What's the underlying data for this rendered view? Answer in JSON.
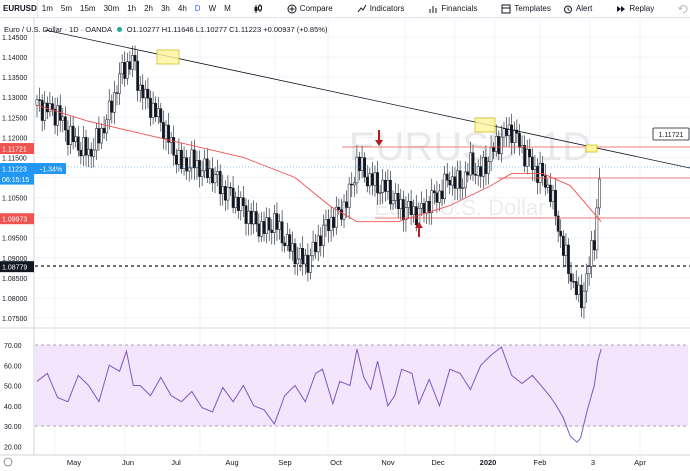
{
  "toolbar": {
    "symbol": "EURUSD",
    "timeframes": [
      "1m",
      "5m",
      "15m",
      "30m",
      "1h",
      "2h",
      "3h",
      "4h",
      "D",
      "W",
      "M"
    ],
    "active_timeframe": "D",
    "compare_label": "Compare",
    "indicators_label": "Indicators",
    "financials_label": "Financials",
    "templates_label": "Templates",
    "alert_label": "Alert",
    "replay_label": "Replay"
  },
  "legend": {
    "title": "Euro / U.S. Dollar · 1D · OANDA",
    "ohlc": "O1.10277  H1.11646  L1.10277  C1.11223  +0.00937 (+0.85%)"
  },
  "watermark": {
    "symbol": "EURUSD, 1D",
    "name": "Euro / U.S. Dollar"
  },
  "price_axis": {
    "labels": [
      "1.14500",
      "1.14000",
      "1.13500",
      "1.13000",
      "1.12500",
      "1.12000",
      "1.11500",
      "1.11000",
      "1.10500",
      "1.10000",
      "1.09500",
      "1.09000",
      "1.08500",
      "1.08000",
      "1.07500"
    ],
    "values": [
      1.145,
      1.14,
      1.135,
      1.13,
      1.125,
      1.12,
      1.115,
      1.11,
      1.105,
      1.1,
      1.095,
      1.09,
      1.085,
      1.08,
      1.075
    ],
    "tags": [
      {
        "text": "1.11721",
        "value": 1.11721,
        "color": "#ef5350"
      },
      {
        "text": "1.11223",
        "value": 1.11223,
        "color": "#2196f3"
      },
      {
        "text": "06:15:15",
        "value": 1.1096,
        "color": "#2196f3"
      },
      {
        "text": "1.09973",
        "value": 1.09973,
        "color": "#ef5350"
      },
      {
        "text": "1.08779",
        "value": 1.08779,
        "color": "#131722"
      }
    ],
    "pct_tag": "-1.34%",
    "callout": "1.11721"
  },
  "rsi_axis": {
    "labels": [
      "70.00",
      "60.00",
      "50.00",
      "40.00",
      "30.00",
      "20.00"
    ],
    "values": [
      70,
      60,
      50,
      40,
      30,
      20
    ]
  },
  "time_axis": {
    "labels": [
      "May",
      "Jun",
      "Jul",
      "Aug",
      "Sep",
      "Oct",
      "Nov",
      "Dec",
      "2020",
      "Feb",
      "3",
      "Apr"
    ]
  },
  "colors": {
    "up": "#26a69a",
    "down": "#131722",
    "ma": "#ef5350",
    "trendline": "#131722",
    "level": "#ef5350",
    "rsi": "#7e57c2",
    "rsi_band": "#f3e5fb",
    "highlight": "#fff59d"
  },
  "chart_data": {
    "type": "candlestick",
    "instrument": "EURUSD",
    "timeframe": "1D",
    "price_range": [
      1.072,
      1.148
    ],
    "horizontal_levels": [
      1.11721,
      1.11223,
      1.09973,
      1.08779
    ],
    "close_path": [
      [
        0,
        1.128
      ],
      [
        6,
        1.127
      ],
      [
        12,
        1.126
      ],
      [
        18,
        1.121
      ],
      [
        24,
        1.118
      ],
      [
        30,
        1.116
      ],
      [
        36,
        1.12
      ],
      [
        42,
        1.126
      ],
      [
        48,
        1.135
      ],
      [
        52,
        1.138
      ],
      [
        56,
        1.139
      ],
      [
        60,
        1.132
      ],
      [
        66,
        1.128
      ],
      [
        72,
        1.124
      ],
      [
        78,
        1.118
      ],
      [
        84,
        1.113
      ],
      [
        90,
        1.114
      ],
      [
        96,
        1.112
      ],
      [
        102,
        1.111
      ],
      [
        108,
        1.107
      ],
      [
        114,
        1.105
      ],
      [
        120,
        1.102
      ],
      [
        126,
        1.099
      ],
      [
        132,
        1.097
      ],
      [
        138,
        1.099
      ],
      [
        142,
        1.096
      ],
      [
        146,
        1.093
      ],
      [
        152,
        1.09
      ],
      [
        158,
        1.089
      ],
      [
        164,
        1.095
      ],
      [
        170,
        1.099
      ],
      [
        176,
        1.101
      ],
      [
        182,
        1.106
      ],
      [
        186,
        1.114
      ],
      [
        192,
        1.11
      ],
      [
        198,
        1.108
      ],
      [
        204,
        1.107
      ],
      [
        210,
        1.103
      ],
      [
        216,
        1.102
      ],
      [
        222,
        1.101
      ],
      [
        228,
        1.104
      ],
      [
        234,
        1.106
      ],
      [
        240,
        1.11
      ],
      [
        246,
        1.108
      ],
      [
        252,
        1.113
      ],
      [
        258,
        1.111
      ],
      [
        264,
        1.116
      ],
      [
        270,
        1.12
      ],
      [
        276,
        1.122
      ],
      [
        282,
        1.117
      ],
      [
        288,
        1.113
      ],
      [
        294,
        1.11
      ],
      [
        298,
        1.107
      ],
      [
        302,
        1.1
      ],
      [
        306,
        1.092
      ],
      [
        310,
        1.086
      ],
      [
        314,
        1.081
      ],
      [
        316,
        1.079
      ],
      [
        320,
        1.086
      ],
      [
        324,
        1.095
      ],
      [
        326,
        1.105
      ],
      [
        328,
        1.112
      ]
    ],
    "ma_path": [
      [
        0,
        1.128
      ],
      [
        30,
        1.124
      ],
      [
        60,
        1.121
      ],
      [
        90,
        1.118
      ],
      [
        120,
        1.115
      ],
      [
        150,
        1.11
      ],
      [
        170,
        1.103
      ],
      [
        186,
        1.099
      ],
      [
        210,
        1.099
      ],
      [
        240,
        1.103
      ],
      [
        264,
        1.108
      ],
      [
        276,
        1.111
      ],
      [
        294,
        1.111
      ],
      [
        310,
        1.108
      ],
      [
        320,
        1.103
      ],
      [
        328,
        1.099
      ]
    ],
    "rsi_path": [
      [
        0,
        52
      ],
      [
        6,
        56
      ],
      [
        12,
        44
      ],
      [
        18,
        42
      ],
      [
        24,
        55
      ],
      [
        30,
        50
      ],
      [
        36,
        42
      ],
      [
        42,
        60
      ],
      [
        48,
        57
      ],
      [
        52,
        67
      ],
      [
        56,
        50
      ],
      [
        60,
        50
      ],
      [
        66,
        45
      ],
      [
        72,
        54
      ],
      [
        78,
        45
      ],
      [
        84,
        42
      ],
      [
        90,
        47
      ],
      [
        96,
        39
      ],
      [
        102,
        37
      ],
      [
        108,
        49
      ],
      [
        114,
        42
      ],
      [
        120,
        50
      ],
      [
        126,
        40
      ],
      [
        132,
        38
      ],
      [
        138,
        31
      ],
      [
        144,
        45
      ],
      [
        150,
        50
      ],
      [
        156,
        42
      ],
      [
        162,
        56
      ],
      [
        166,
        58
      ],
      [
        172,
        41
      ],
      [
        176,
        52
      ],
      [
        182,
        50
      ],
      [
        186,
        68
      ],
      [
        190,
        54
      ],
      [
        194,
        48
      ],
      [
        198,
        62
      ],
      [
        204,
        40
      ],
      [
        208,
        45
      ],
      [
        212,
        58
      ],
      [
        218,
        56
      ],
      [
        222,
        41
      ],
      [
        228,
        53
      ],
      [
        234,
        40
      ],
      [
        240,
        58
      ],
      [
        246,
        56
      ],
      [
        252,
        48
      ],
      [
        258,
        60
      ],
      [
        264,
        65
      ],
      [
        270,
        69
      ],
      [
        276,
        55
      ],
      [
        282,
        51
      ],
      [
        288,
        55
      ],
      [
        294,
        49
      ],
      [
        298,
        45
      ],
      [
        302,
        40
      ],
      [
        306,
        34
      ],
      [
        310,
        25
      ],
      [
        314,
        22
      ],
      [
        316,
        24
      ],
      [
        320,
        38
      ],
      [
        324,
        50
      ],
      [
        326,
        62
      ],
      [
        328,
        68
      ]
    ],
    "rsi_levels": [
      70,
      30
    ],
    "rsi_range": [
      16,
      75
    ]
  }
}
